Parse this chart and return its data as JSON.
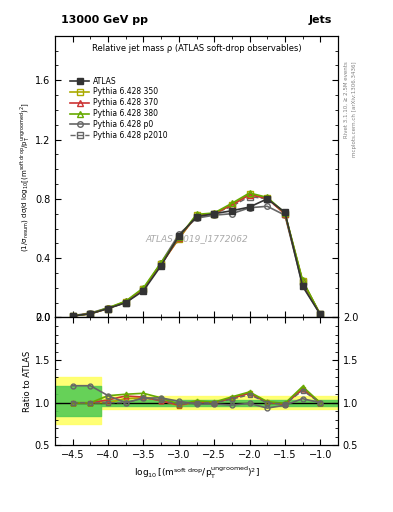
{
  "title_left": "13000 GeV pp",
  "title_right": "Jets",
  "plot_title": "Relative jet mass ρ (ATLAS soft-drop observables)",
  "watermark": "ATLAS_2019_I1772062",
  "right_label_top": "Rivet 3.1.10, ≥ 2.5M events",
  "right_label_bottom": "mcplots.cern.ch [arXiv:1306.3436]",
  "ylabel_main": "(1/σ$_{\\mathrm{resum}}$) dσ/d log$_{10}$[(m$^{\\mathrm{soft\\ drop}}$/p$_{\\mathrm{T}}^{\\mathrm{ungroomed}}$)$^2$]",
  "ylabel_ratio": "Ratio to ATLAS",
  "x_values": [
    -4.5,
    -4.25,
    -4.0,
    -3.75,
    -3.5,
    -3.25,
    -3.0,
    -2.75,
    -2.5,
    -2.25,
    -2.0,
    -1.75,
    -1.5,
    -1.25,
    -1.0
  ],
  "atlas_y": [
    0.01,
    0.025,
    0.06,
    0.1,
    0.18,
    0.35,
    0.55,
    0.68,
    0.7,
    0.72,
    0.745,
    0.8,
    0.71,
    0.21,
    0.02
  ],
  "p350_y": [
    0.01,
    0.025,
    0.06,
    0.105,
    0.19,
    0.36,
    0.53,
    0.69,
    0.7,
    0.76,
    0.83,
    0.805,
    0.7,
    0.245,
    0.02
  ],
  "p370_y": [
    0.01,
    0.025,
    0.062,
    0.108,
    0.192,
    0.358,
    0.535,
    0.688,
    0.702,
    0.758,
    0.828,
    0.803,
    0.698,
    0.243,
    0.02
  ],
  "p380_y": [
    0.01,
    0.025,
    0.065,
    0.11,
    0.2,
    0.37,
    0.54,
    0.695,
    0.705,
    0.77,
    0.84,
    0.81,
    0.705,
    0.25,
    0.02
  ],
  "p0_y": [
    0.012,
    0.03,
    0.065,
    0.1,
    0.19,
    0.37,
    0.56,
    0.67,
    0.69,
    0.7,
    0.74,
    0.75,
    0.69,
    0.22,
    0.02
  ],
  "p2010_y": [
    0.01,
    0.025,
    0.06,
    0.1,
    0.19,
    0.36,
    0.54,
    0.68,
    0.7,
    0.75,
    0.815,
    0.8,
    0.7,
    0.24,
    0.02
  ],
  "atlas_color": "#333333",
  "p350_color": "#aaaa00",
  "p370_color": "#cc3333",
  "p380_color": "#66aa00",
  "p0_color": "#666666",
  "p2010_color": "#666666",
  "ylim_main": [
    0,
    1.9
  ],
  "ylim_ratio": [
    0.5,
    2.0
  ],
  "xlim": [
    -4.75,
    -0.75
  ]
}
